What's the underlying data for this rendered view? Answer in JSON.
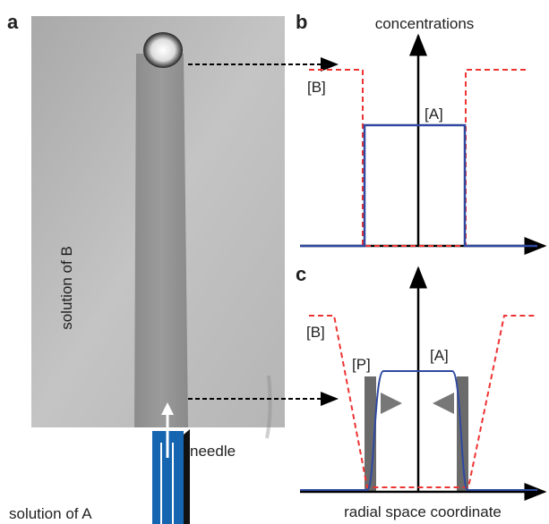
{
  "panel_a": {
    "label": "a",
    "medium_label": "solution of B",
    "needle_label": "needle",
    "inlet_label": "solution of A"
  },
  "panel_b": {
    "label": "b",
    "y_axis_label": "concentrations",
    "curve_b_label": "[B]",
    "curve_a_label": "[A]"
  },
  "panel_c": {
    "label": "c",
    "x_axis_label": "radial space coordinate",
    "curve_b_label": "[B]",
    "curve_p_label": "[P]",
    "curve_a_label": "[A]"
  }
}
